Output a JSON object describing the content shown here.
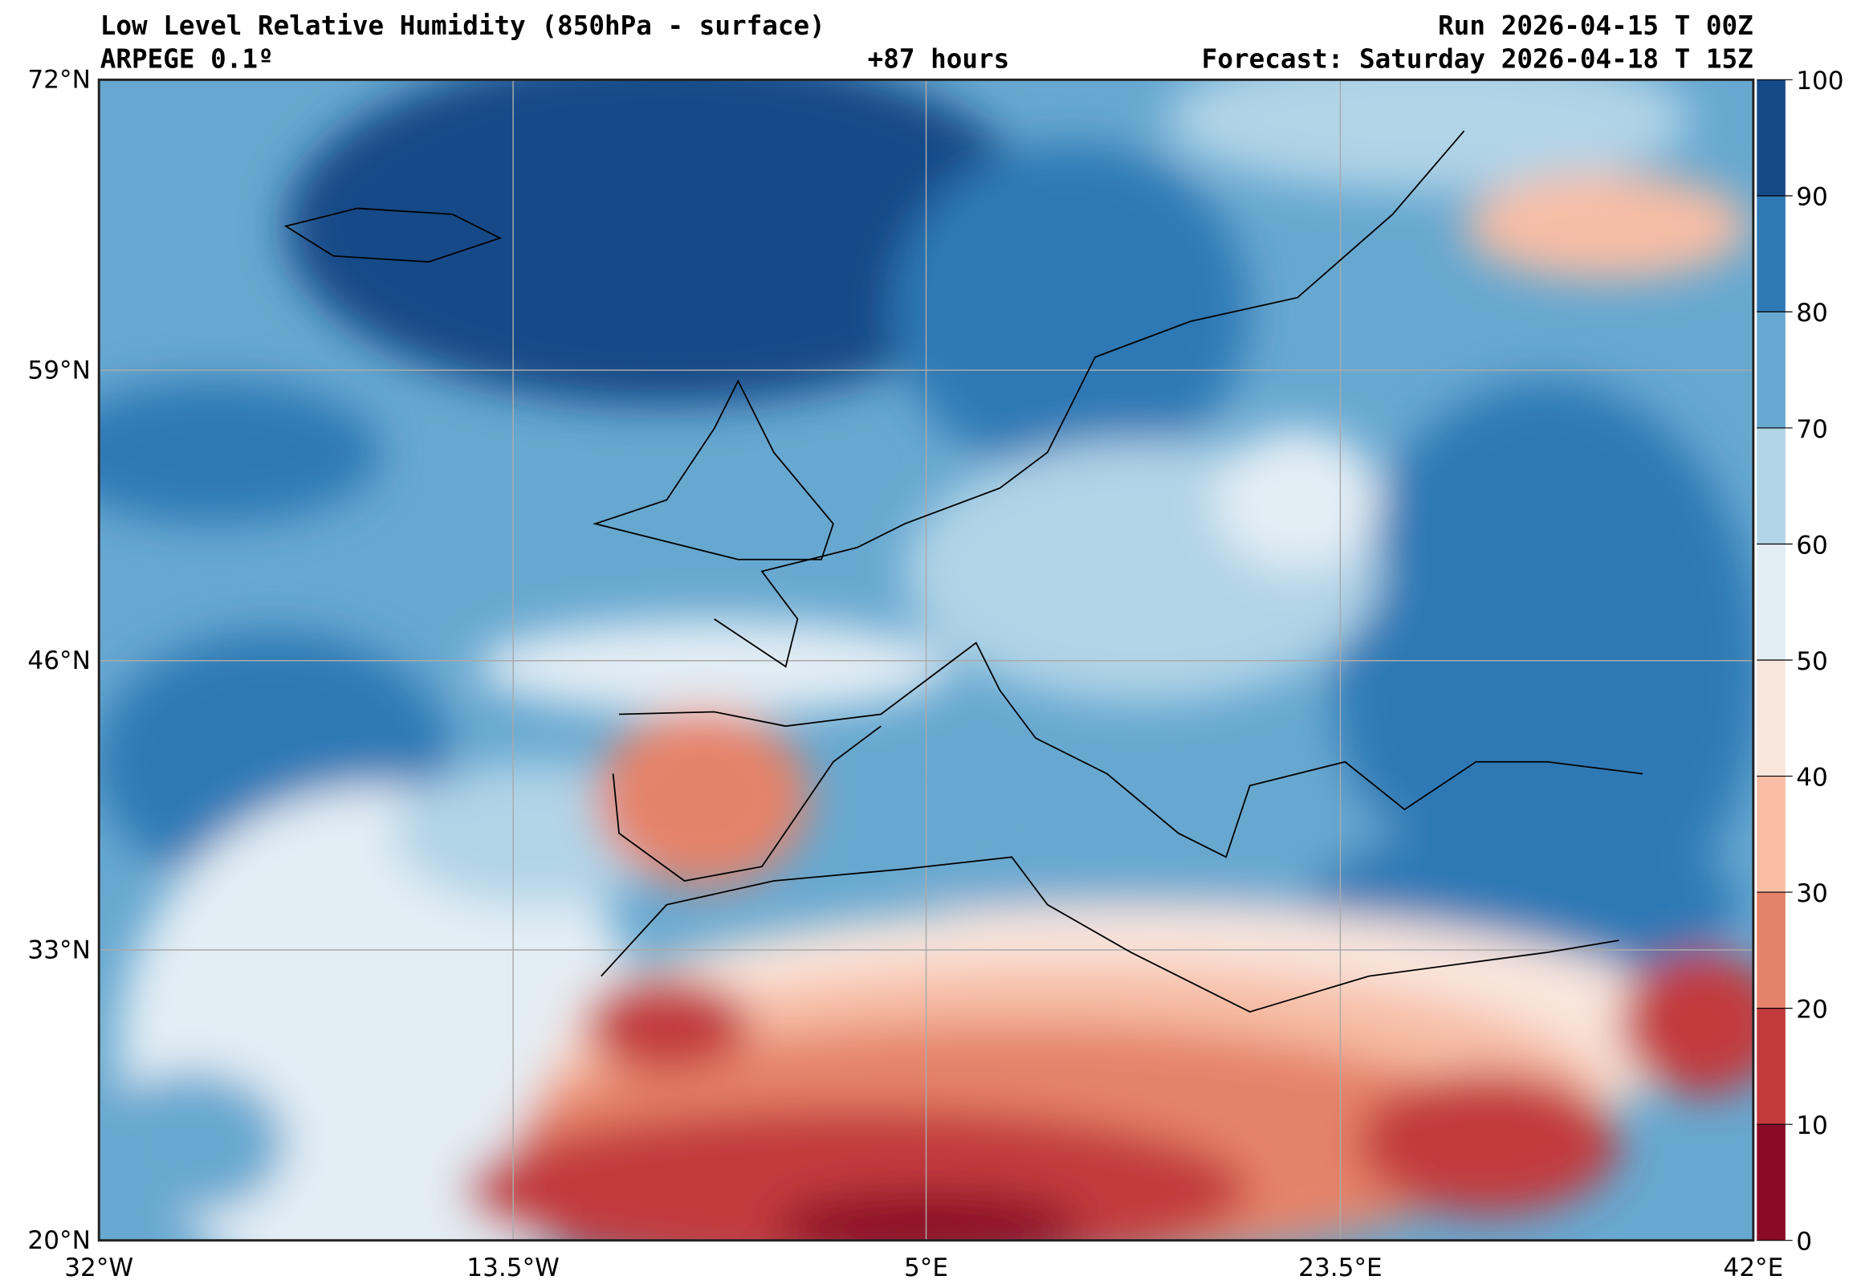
{
  "header": {
    "title": "Low Level Relative Humidity (850hPa - surface)",
    "model": "ARPEGE 0.1º",
    "lead_time": "+87 hours",
    "run": "Run 2026-04-15 T 00Z",
    "forecast": "Forecast: Saturday 2026-04-18 T 15Z"
  },
  "axes": {
    "lat_labels": [
      "72°N",
      "59°N",
      "46°N",
      "33°N",
      "20°N"
    ],
    "lon_labels": [
      "32°W",
      "13.5°W",
      "5°E",
      "23.5°E",
      "42°E"
    ]
  },
  "colorbar": {
    "levels": [
      "0",
      "10",
      "20",
      "30",
      "40",
      "50",
      "60",
      "70",
      "80",
      "90",
      "100"
    ],
    "colors": [
      "#8b0a26",
      "#c23a3c",
      "#e5836a",
      "#f7bda5",
      "#f9e6dd",
      "#e3edf4",
      "#b1d4e7",
      "#67a8d0",
      "#2f79b5",
      "#154a87"
    ]
  }
}
